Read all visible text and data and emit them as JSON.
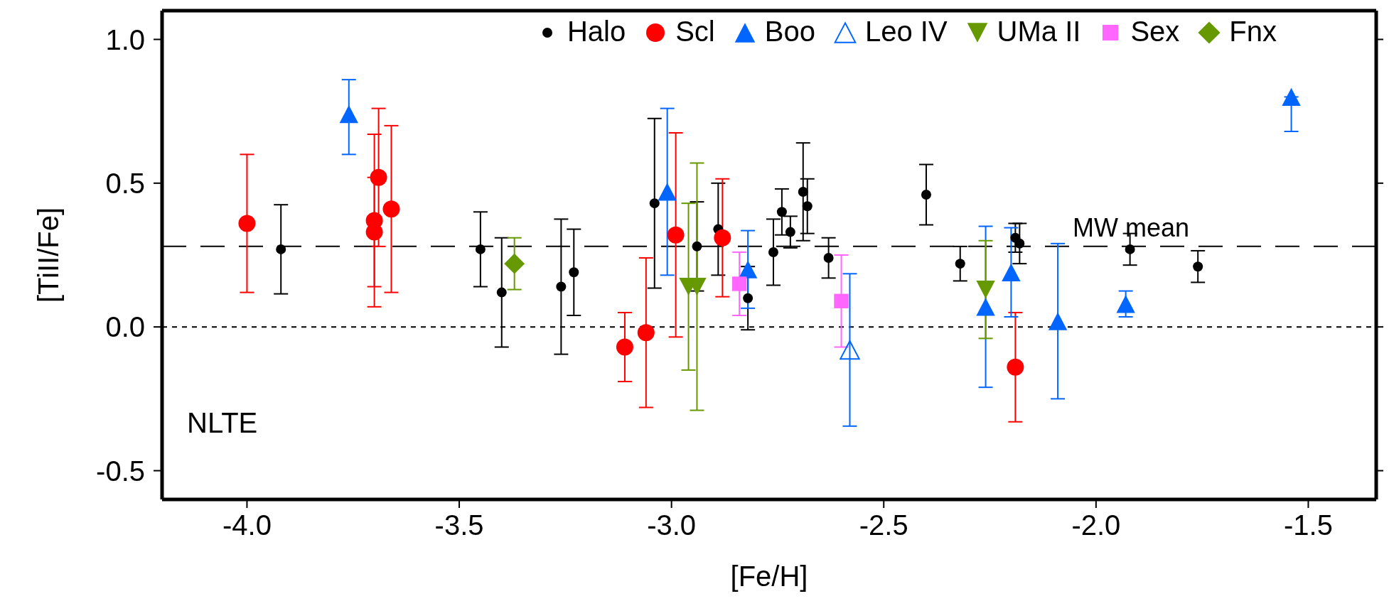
{
  "chart_data": {
    "type": "scatter",
    "xlabel": "[Fe/H]",
    "ylabel": "[TiII/Fe]",
    "xlim": [
      -4.2,
      -1.34
    ],
    "ylim": [
      -0.6,
      1.1
    ],
    "xticks": [
      {
        "value": -4,
        "label": "-4.0"
      },
      {
        "value": -3.5,
        "label": "-3.5"
      },
      {
        "value": -3,
        "label": "-3.0"
      },
      {
        "value": -2.5,
        "label": "-2.5"
      },
      {
        "value": -2,
        "label": "-2.0"
      },
      {
        "value": -1.5,
        "label": "-1.5"
      }
    ],
    "yticks": [
      {
        "value": -0.5,
        "label": "-0.5"
      },
      {
        "value": 0,
        "label": "0.0"
      },
      {
        "value": 0.5,
        "label": "0.5"
      },
      {
        "value": 1,
        "label": "1.0"
      }
    ],
    "grid": false,
    "legend": "top right",
    "annotations": [
      "NLTE"
    ],
    "ref_lines": [
      {
        "axis": "y",
        "value": 0.28,
        "label": "MW mean",
        "line_style": "dashed",
        "color": "#000000"
      },
      {
        "axis": "y",
        "value": 0,
        "line_style": "dotted",
        "color": "#000000"
      }
    ],
    "series": [
      {
        "name": "Halo",
        "color": "#000000",
        "marker": "circle",
        "x": [
          -3.92,
          -3.45,
          -3.4,
          -3.26,
          -3.23,
          -3.04,
          -2.94,
          -2.89,
          -2.85,
          -2.82,
          -2.76,
          -2.74,
          -2.72,
          -2.69,
          -2.68,
          -2.63,
          -2.4,
          -2.32,
          -2.19,
          -2.18,
          -1.92,
          -1.76
        ],
        "values": [
          0.27,
          0.27,
          0.12,
          0.14,
          0.19,
          0.43,
          0.28,
          0.34,
          null,
          0.1,
          0.26,
          0.4,
          0.33,
          0.47,
          0.42,
          0.24,
          0.46,
          0.22,
          0.31,
          0.29,
          0.27,
          0.21
        ],
        "errors": [
          0.155,
          0.13,
          0.19,
          0.235,
          0.15,
          0.295,
          0.155,
          0.16,
          null,
          0.11,
          0.115,
          0.08,
          0.055,
          0.17,
          0.095,
          0.07,
          0.105,
          0.06,
          0.05,
          0.07,
          0.055,
          0.055
        ]
      },
      {
        "name": "Scl",
        "color": "#ff0000",
        "marker": "circle",
        "x": [
          -4.0,
          -3.7,
          -3.7,
          -3.69,
          -3.66,
          -3.11,
          -3.06,
          -2.99,
          -2.88,
          -2.19
        ],
        "values": [
          0.36,
          0.37,
          0.33,
          0.52,
          0.41,
          -0.07,
          -0.02,
          0.32,
          0.31,
          -0.14
        ],
        "errors": [
          0.24,
          0.3,
          0.19,
          0.24,
          0.29,
          0.12,
          0.26,
          0.355,
          0.205,
          0.19
        ]
      },
      {
        "name": "Boo",
        "color": "#0066ff",
        "marker": "triangle",
        "x": [
          -3.76,
          -3.01,
          -2.82,
          -2.26,
          -2.2,
          -2.09,
          -1.93,
          -1.54
        ],
        "values": [
          0.74,
          0.47,
          0.2,
          0.07,
          0.19,
          0.02,
          0.08,
          0.8
        ],
        "errors": [
          [
            0.6,
            0.86
          ],
          0.29,
          0.135,
          0.28,
          0.155,
          0.27,
          0.045,
          [
            0.68,
            0.8
          ]
        ]
      },
      {
        "name": "Leo IV",
        "color": "#0066ff",
        "marker": "triangle-open",
        "x": [
          -2.58
        ],
        "values": [
          -0.08
        ],
        "errors": [
          0.265
        ]
      },
      {
        "name": "UMa II",
        "color": "#669900",
        "marker": "triangle-down",
        "x": [
          -2.96,
          -2.94,
          -2.26
        ],
        "values": [
          0.14,
          0.14,
          0.13
        ],
        "errors": [
          0.29,
          0.43,
          0.17
        ]
      },
      {
        "name": "Sex",
        "color": "#ff66ff",
        "marker": "square",
        "x": [
          -2.84,
          -2.6
        ],
        "values": [
          0.15,
          0.09
        ],
        "errors": [
          0.11,
          0.16
        ]
      },
      {
        "name": "Fnx",
        "color": "#669900",
        "marker": "diamond",
        "x": [
          -3.37
        ],
        "values": [
          0.22
        ],
        "errors": [
          0.09
        ]
      }
    ]
  }
}
